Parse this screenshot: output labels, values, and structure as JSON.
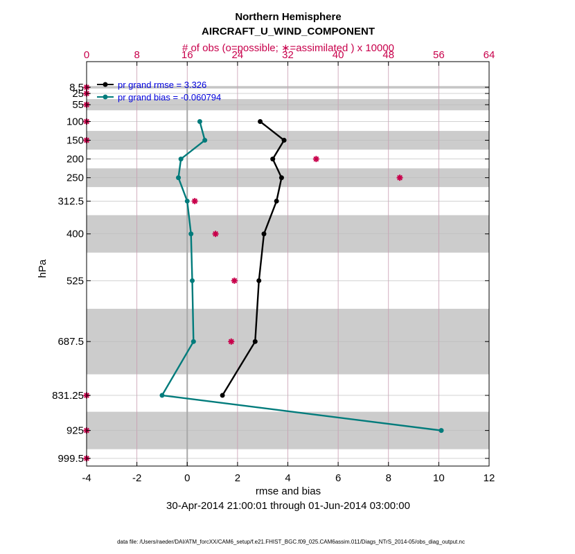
{
  "chart_data": {
    "type": "line",
    "title": "Northern Hemisphere",
    "subtitle": "AIRCRAFT_U_WIND_COMPONENT",
    "top_axis_label": "# of obs (o=possible; ∗=assimilated ) x 10000",
    "xlabel": "rmse and bias",
    "ylabel": "hPa",
    "date_range": "30-Apr-2014 21:00:01 through 01-Jun-2014 03:00:00",
    "footnote": "data file: /Users/raeder/DAI/ATM_forcXX/CAM6_setup/f.e21.FHIST_BGC.f09_025.CAM6assim.011/Diags_NTrS_2014-05/obs_diag_output.nc",
    "xlim": [
      -4,
      12
    ],
    "x_ticks": [
      "-4",
      "-2",
      "0",
      "2",
      "4",
      "6",
      "8",
      "10",
      "12"
    ],
    "top_xlim": [
      0,
      64
    ],
    "top_ticks": [
      "0",
      "8",
      "16",
      "24",
      "32",
      "40",
      "48",
      "56",
      "64"
    ],
    "ylim": [
      1020,
      -60
    ],
    "levels": [
      8.5,
      25,
      55,
      100,
      150,
      200,
      250,
      312.5,
      400,
      525,
      687.5,
      831.25,
      925,
      999.5
    ],
    "level_labels": [
      "8.5",
      "25",
      "55",
      "100",
      "150",
      "200",
      "250",
      "312.5",
      "400",
      "525",
      "687.5",
      "831.25",
      "925",
      "999.5"
    ],
    "shaded_bands": [
      [
        5,
        12
      ],
      [
        40,
        70
      ],
      [
        125,
        175
      ],
      [
        225,
        275
      ],
      [
        350,
        450
      ],
      [
        600,
        775
      ],
      [
        875,
        975
      ]
    ],
    "series": [
      {
        "name": "pr grand rmse = 3.326",
        "color": "#000000",
        "points": [
          {
            "x": 2.9,
            "y": 100
          },
          {
            "x": 3.85,
            "y": 150
          },
          {
            "x": 3.4,
            "y": 200
          },
          {
            "x": 3.75,
            "y": 250
          },
          {
            "x": 3.55,
            "y": 312.5
          },
          {
            "x": 3.05,
            "y": 400
          },
          {
            "x": 2.85,
            "y": 525
          },
          {
            "x": 2.7,
            "y": 687.5
          },
          {
            "x": 1.4,
            "y": 831.25
          }
        ]
      },
      {
        "name": "pr grand bias = -0.060794",
        "color": "#007b7b",
        "points": [
          {
            "x": 0.5,
            "y": 100
          },
          {
            "x": 0.7,
            "y": 150
          },
          {
            "x": -0.25,
            "y": 200
          },
          {
            "x": -0.35,
            "y": 250
          },
          {
            "x": 0.0,
            "y": 312.5
          },
          {
            "x": 0.15,
            "y": 400
          },
          {
            "x": 0.2,
            "y": 525
          },
          {
            "x": 0.25,
            "y": 687.5
          },
          {
            "x": -1.0,
            "y": 831.25
          },
          {
            "x": 10.1,
            "y": 925
          }
        ]
      }
    ],
    "obs_assimilated": [
      {
        "count": 0,
        "y": 8.5
      },
      {
        "count": 0,
        "y": 25
      },
      {
        "count": 0,
        "y": 55
      },
      {
        "count": 0,
        "y": 100
      },
      {
        "count": 0,
        "y": 150
      },
      {
        "count": 36.5,
        "y": 200
      },
      {
        "count": 49.8,
        "y": 250
      },
      {
        "count": 17.2,
        "y": 312.5
      },
      {
        "count": 20.5,
        "y": 400
      },
      {
        "count": 23.5,
        "y": 525
      },
      {
        "count": 23.0,
        "y": 687.5
      },
      {
        "count": 0,
        "y": 831.25
      },
      {
        "count": 0,
        "y": 925
      },
      {
        "count": 0,
        "y": 999.5
      }
    ],
    "colors": {
      "obs": "#c8004b",
      "grid": "#c89bb0",
      "band": "#cccccc",
      "zero_line": "#a8a8a8"
    }
  }
}
